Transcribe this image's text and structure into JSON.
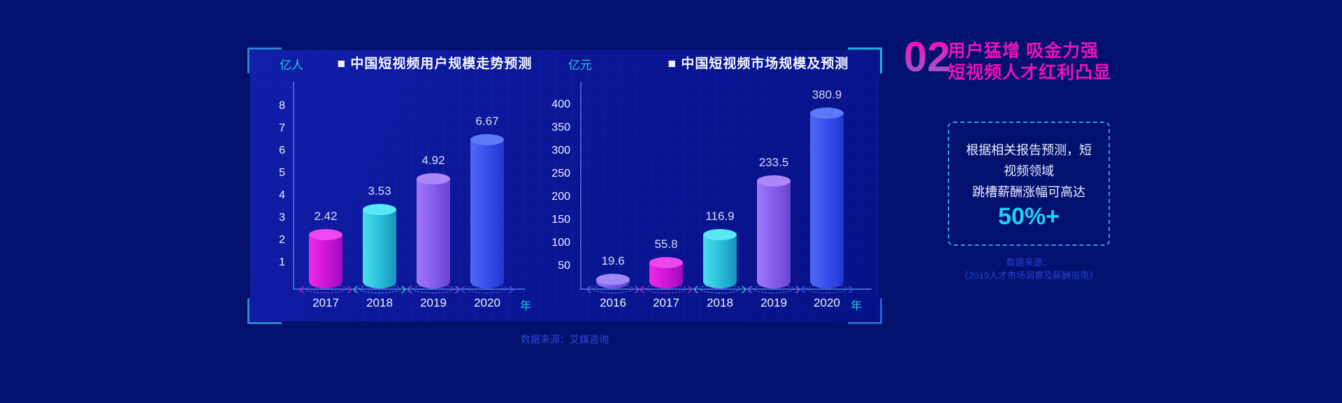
{
  "colors": {
    "background": "#02106e",
    "panel_background": "#0a1695",
    "bracket_blue": "#2b86d9",
    "bracket_cyan": "#16b4e4",
    "accent_cyan": "#22c8dc",
    "heading_magenta": "#ee10b8",
    "highlight_cyan": "#1ed0f2",
    "source_blue": "#2c4ad8"
  },
  "section": {
    "number": "02",
    "heading_line1": "用户猛增 吸金力强",
    "heading_line2": "短视频人才红利凸显",
    "callout_lines": [
      "根据相关报告预测，短",
      "视频领域",
      "跳槽薪酬涨幅可高达"
    ],
    "callout_highlight": "50%+",
    "source_line1": "数据来源：",
    "source_line2": "《2019人才市场洞察及薪酬指南》"
  },
  "footer": {
    "source": "数据来源：艾媒咨询"
  },
  "chart_data": [
    {
      "type": "bar",
      "title": "■ 中国短视频用户规模走势预测",
      "unit_label": "亿人",
      "x_axis_suffix": "年",
      "categories": [
        "2017",
        "2018",
        "2019",
        "2020"
      ],
      "values": [
        2.42,
        3.53,
        4.92,
        6.67
      ],
      "y_ticks": [
        1,
        2,
        3,
        4,
        5,
        6,
        7,
        8
      ],
      "ylim": [
        0,
        8.8
      ],
      "grid": true,
      "legend": "none",
      "bar_colors": [
        {
          "cap": "#ef46ee",
          "light": "#ee2ce4",
          "body": "#d316d8",
          "dark": "#9c0cc0"
        },
        {
          "cap": "#58e8f3",
          "light": "#4adfed",
          "body": "#2ec3da",
          "dark": "#1792bd"
        },
        {
          "cap": "#ad86f8",
          "light": "#a078f5",
          "body": "#8a60ee",
          "dark": "#6a44d4"
        },
        {
          "cap": "#5d79f8",
          "light": "#5068f4",
          "body": "#3853ee",
          "dark": "#2236cf"
        }
      ]
    },
    {
      "type": "bar",
      "title": "■ 中国短视频市场规模及预测",
      "unit_label": "亿元",
      "x_axis_suffix": "年",
      "categories": [
        "2016",
        "2017",
        "2018",
        "2019",
        "2020"
      ],
      "values": [
        19.6,
        55.8,
        116.9,
        233.5,
        380.9
      ],
      "y_ticks": [
        50,
        100,
        150,
        200,
        250,
        300,
        350,
        400
      ],
      "ylim": [
        0,
        440
      ],
      "grid": true,
      "legend": "none",
      "bar_colors": [
        {
          "cap": "#a188f6",
          "light": "#9478f3",
          "body": "#7a58ee",
          "dark": "#5c40d0"
        },
        {
          "cap": "#ef46ee",
          "light": "#ee2ce4",
          "body": "#d316d8",
          "dark": "#9c0cc0"
        },
        {
          "cap": "#58e8f3",
          "light": "#4adfed",
          "body": "#2ec3da",
          "dark": "#1792bd"
        },
        {
          "cap": "#ad86f8",
          "light": "#a078f5",
          "body": "#8a60ee",
          "dark": "#6a44d4"
        },
        {
          "cap": "#5d79f8",
          "light": "#5068f4",
          "body": "#3853ee",
          "dark": "#2236cf"
        }
      ]
    }
  ]
}
